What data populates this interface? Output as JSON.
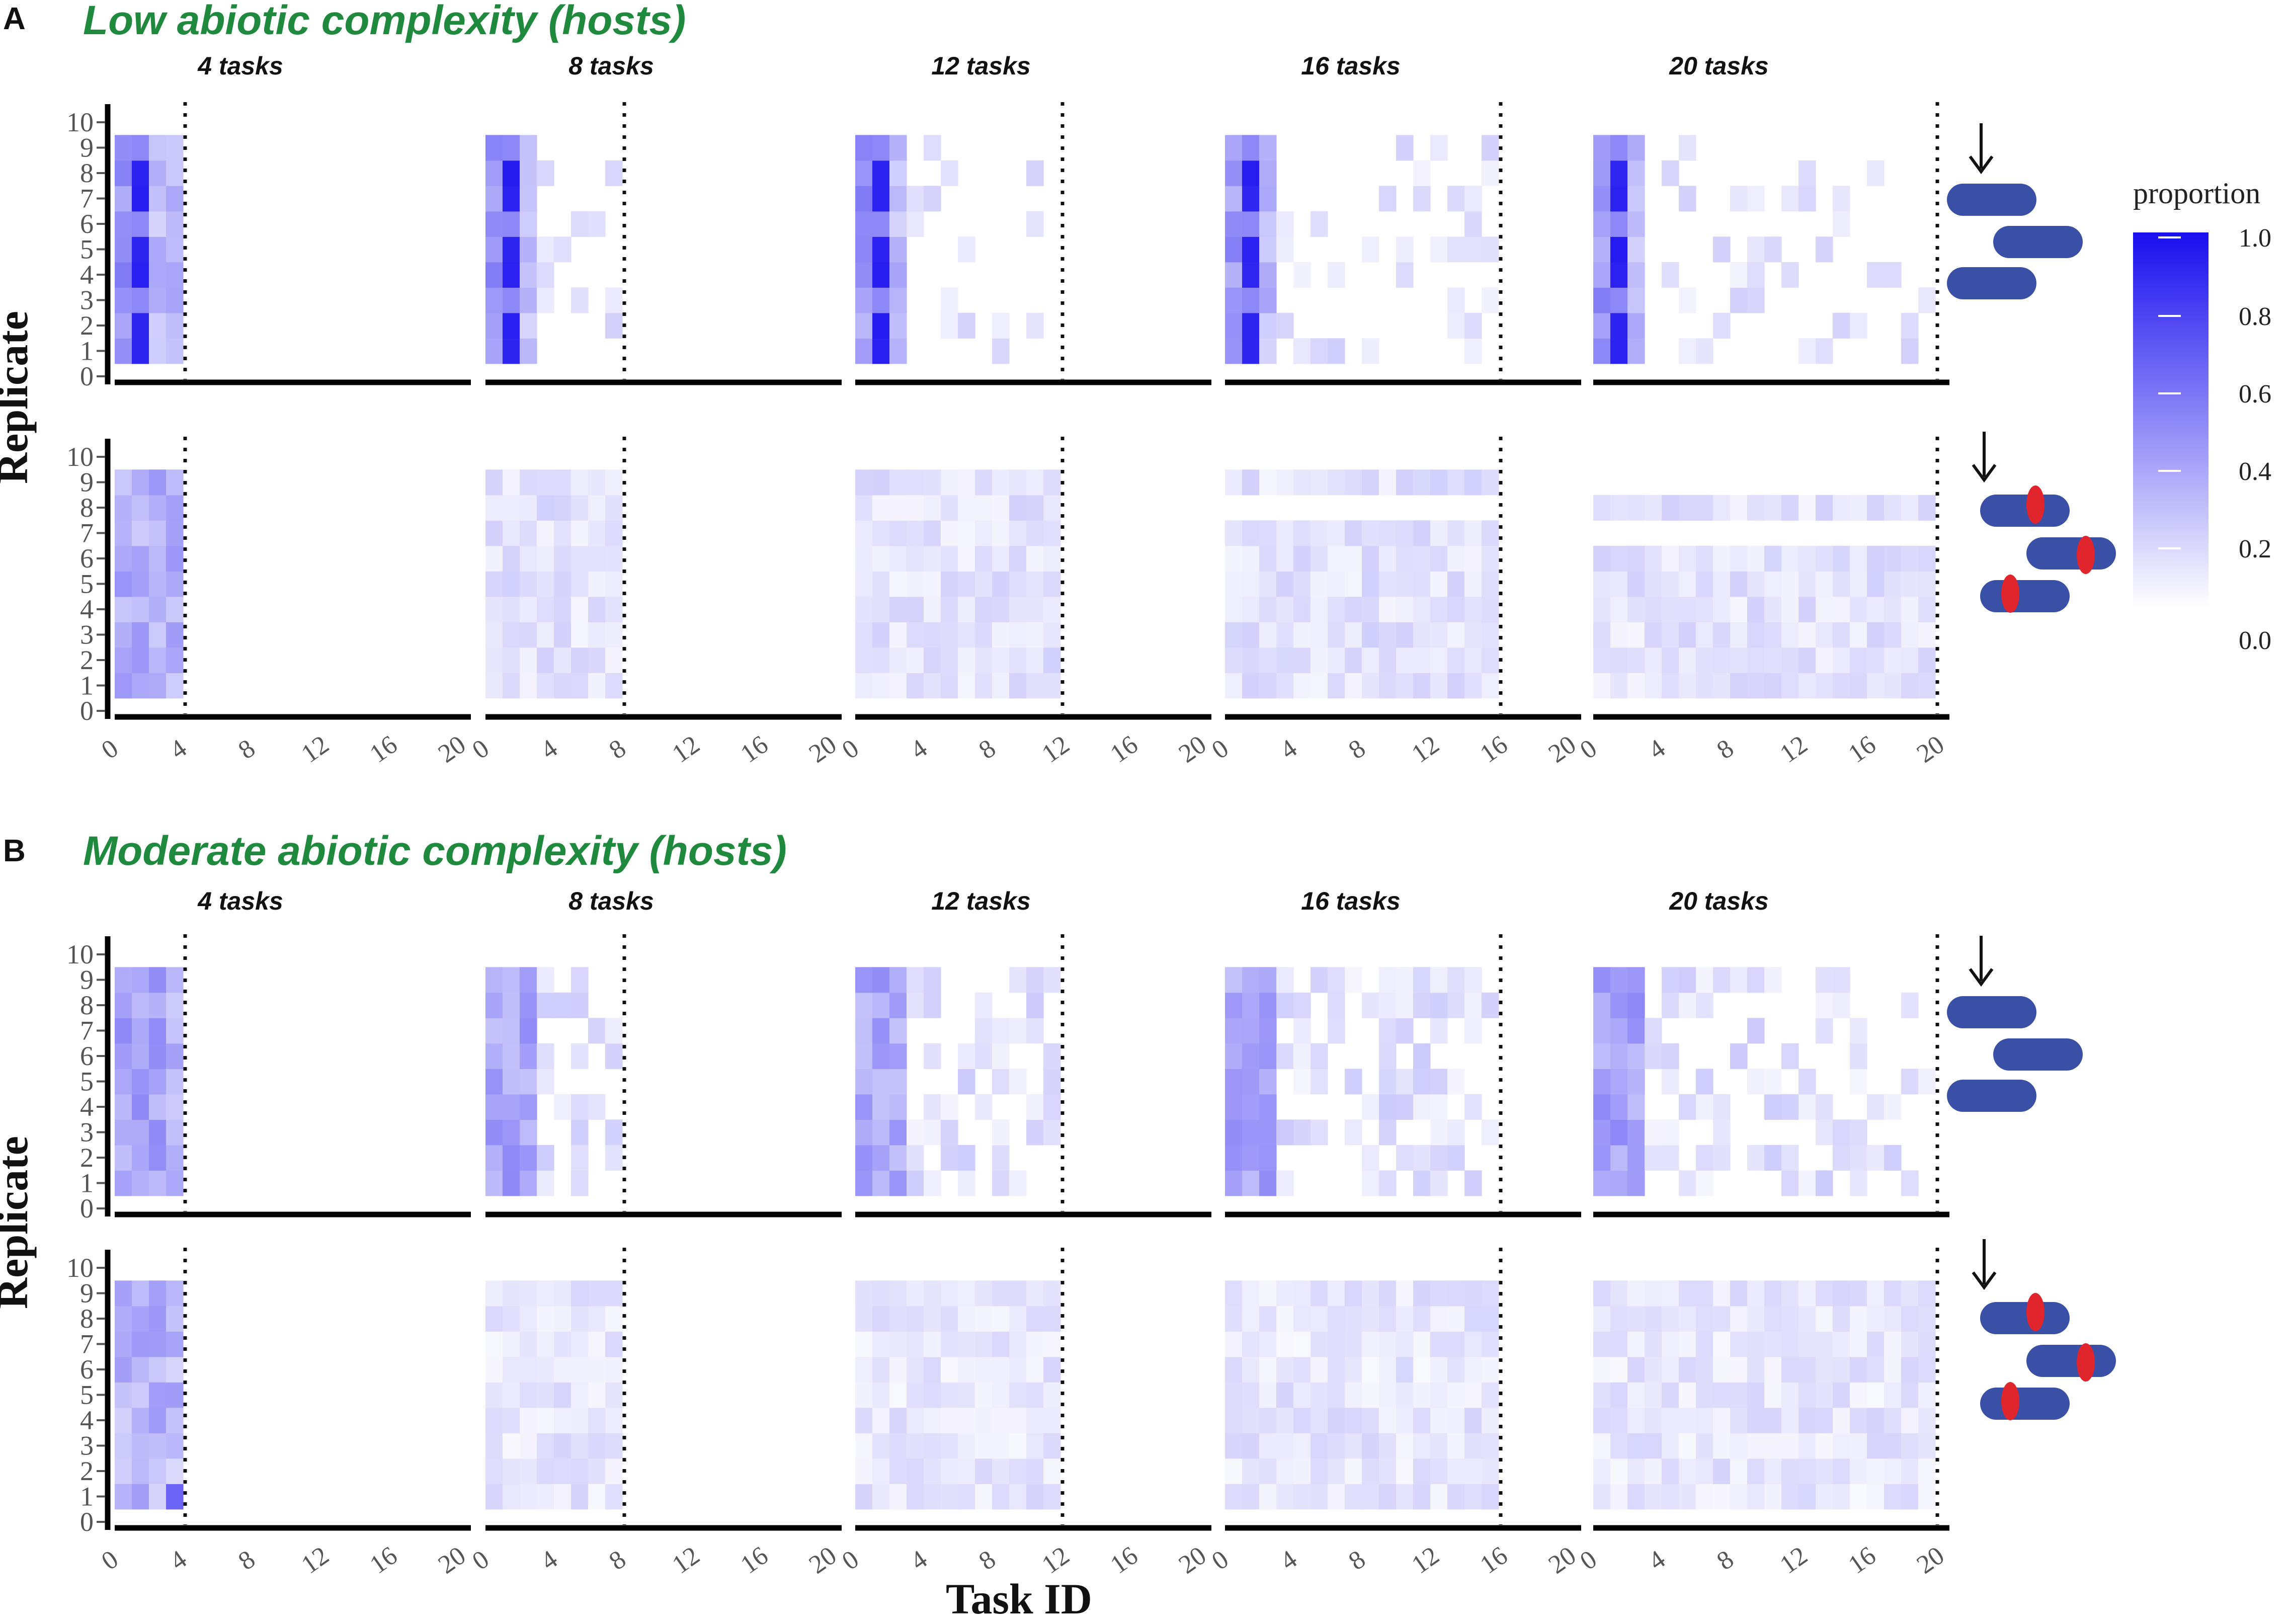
{
  "sections": [
    {
      "letter": "A",
      "title": "Low abiotic complexity (hosts)"
    },
    {
      "letter": "B",
      "title": "Moderate abiotic complexity (hosts)"
    }
  ],
  "axes": {
    "x_title": "Task ID",
    "y_title": "Replicate",
    "x_ticks": [
      "0",
      "4",
      "8",
      "12",
      "16",
      "20"
    ],
    "y_ticks": [
      "0",
      "1",
      "2",
      "3",
      "4",
      "5",
      "6",
      "7",
      "8",
      "9",
      "10"
    ]
  },
  "legend": {
    "title": "proportion",
    "ticks": [
      "1.0",
      "0.8",
      "0.6",
      "0.4",
      "0.2",
      "0.0"
    ],
    "colors": {
      "low": "#ffffff",
      "high": "#1a0fef"
    }
  },
  "colors": {
    "title_green": "#1f8a3e",
    "host_blue": "#3a4fa6",
    "parasite_red": "#e0252c",
    "heat_high": "#1a0fef"
  },
  "icons": {
    "host_only": "host-cells-icon",
    "host_parasite": "host-parasite-cells-icon"
  },
  "chart_data": [
    {
      "type": "heatmap",
      "section": "A",
      "title": "Low abiotic complexity (hosts)",
      "xlabel": "Task ID",
      "ylabel": "Replicate",
      "xlim": [
        0,
        20
      ],
      "ylim": [
        0,
        10
      ],
      "facets": [
        "4 tasks",
        "8 tasks",
        "12 tasks",
        "16 tasks",
        "20 tasks"
      ],
      "rows": [
        "hosts without parasites",
        "hosts with parasites"
      ],
      "color_scale": {
        "name": "proportion",
        "range": [
          0,
          1
        ]
      },
      "dominant_task_by_facet": {
        "4 tasks": 1,
        "8 tasks": 1,
        "12 tasks": 1,
        "16 tasks": 1,
        "20 tasks": 1
      },
      "top_row_peak_proportion": 1.0,
      "bottom_row_typical_proportion": 0.15
    },
    {
      "type": "heatmap",
      "section": "B",
      "title": "Moderate abiotic complexity (hosts)",
      "xlabel": "Task ID",
      "ylabel": "Replicate",
      "xlim": [
        0,
        20
      ],
      "ylim": [
        0,
        10
      ],
      "facets": [
        "4 tasks",
        "8 tasks",
        "12 tasks",
        "16 tasks",
        "20 tasks"
      ],
      "rows": [
        "hosts without parasites",
        "hosts with parasites"
      ],
      "color_scale": {
        "name": "proportion",
        "range": [
          0,
          1
        ]
      },
      "top_row_typical_proportion": 0.3,
      "bottom_row_typical_proportion": 0.12
    }
  ]
}
